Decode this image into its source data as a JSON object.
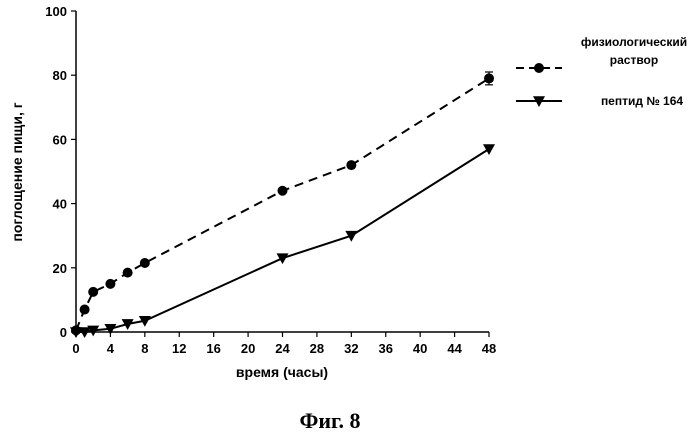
{
  "chart_data": {
    "type": "line",
    "xlabel": "время (часы)",
    "ylabel": "поглощение пищи, г",
    "caption": "Фиг. 8",
    "xlim": [
      0,
      48
    ],
    "ylim": [
      0,
      100
    ],
    "xticks": [
      0,
      4,
      8,
      12,
      16,
      20,
      24,
      28,
      32,
      36,
      40,
      44,
      48
    ],
    "xtick_labels": [
      "0",
      "4",
      "8",
      "12",
      "16",
      "20",
      "24",
      "28",
      "32",
      "36",
      "40",
      "44",
      "48"
    ],
    "yticks": [
      0,
      20,
      40,
      60,
      80,
      100
    ],
    "ytick_labels": [
      "0",
      "20",
      "40",
      "60",
      "80",
      "100"
    ],
    "grid": false,
    "legend_position": "top-right",
    "series": [
      {
        "name": "физиологический раствор",
        "name_lines": [
          "физиологический",
          "раствор"
        ],
        "marker": "circle",
        "line_style": "dashed",
        "color": "#000000",
        "x": [
          0,
          1,
          2,
          4,
          6,
          8,
          24,
          32,
          48
        ],
        "y": [
          0.5,
          7,
          12.5,
          15,
          18.5,
          21.5,
          44,
          52,
          79
        ],
        "error_bar_indices": [
          8
        ],
        "error_bar_size": 2
      },
      {
        "name": "пептид № 164",
        "name_lines": [
          "пептид № 164"
        ],
        "marker": "triangle-down",
        "line_style": "solid",
        "color": "#000000",
        "x": [
          0,
          1,
          2,
          4,
          6,
          8,
          24,
          32,
          48
        ],
        "y": [
          0,
          0,
          0.5,
          1,
          2.5,
          3.5,
          23,
          30,
          57
        ]
      }
    ]
  }
}
